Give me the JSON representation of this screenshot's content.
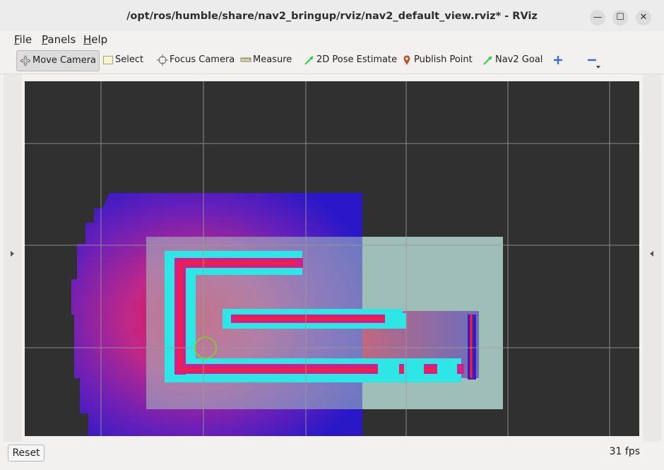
{
  "window": {
    "title": "/opt/ros/humble/share/nav2_bringup/rviz/nav2_default_view.rviz* - RViz",
    "minimize_glyph": "—",
    "maximize_glyph": "☐",
    "close_glyph": "✕"
  },
  "menubar": {
    "items": [
      {
        "label": "File",
        "mnemonic": "F",
        "rest": "ile"
      },
      {
        "label": "Panels",
        "mnemonic": "P",
        "rest": "anels"
      },
      {
        "label": "Help",
        "mnemonic": "H",
        "rest": "elp"
      }
    ]
  },
  "toolbar": {
    "tools": [
      {
        "label": "Move Camera",
        "icon": "move-camera-icon",
        "active": true
      },
      {
        "label": "Select",
        "icon": "select-icon"
      },
      {
        "label": "Focus Camera",
        "icon": "focus-camera-icon"
      },
      {
        "label": "Measure",
        "icon": "ruler-icon"
      },
      {
        "label": "2D Pose Estimate",
        "icon": "green-arrow-icon"
      },
      {
        "label": "Publish Point",
        "icon": "map-pin-icon"
      },
      {
        "label": "Nav2 Goal",
        "icon": "green-arrow-icon"
      }
    ],
    "add_icon": "plus-icon",
    "remove_icon": "minus-icon"
  },
  "colors": {
    "grid": "#9a9a9a",
    "background": "#303030",
    "global_costmap": "#2a18c8",
    "inflation_cyan": "#2ee6e6",
    "lethal": "#e0104a",
    "local_costmap_overlay": "#a8c6c0",
    "robot_footprint": "#7ed321"
  },
  "statusbar": {
    "reset_label": "Reset",
    "fps": "31 fps"
  }
}
